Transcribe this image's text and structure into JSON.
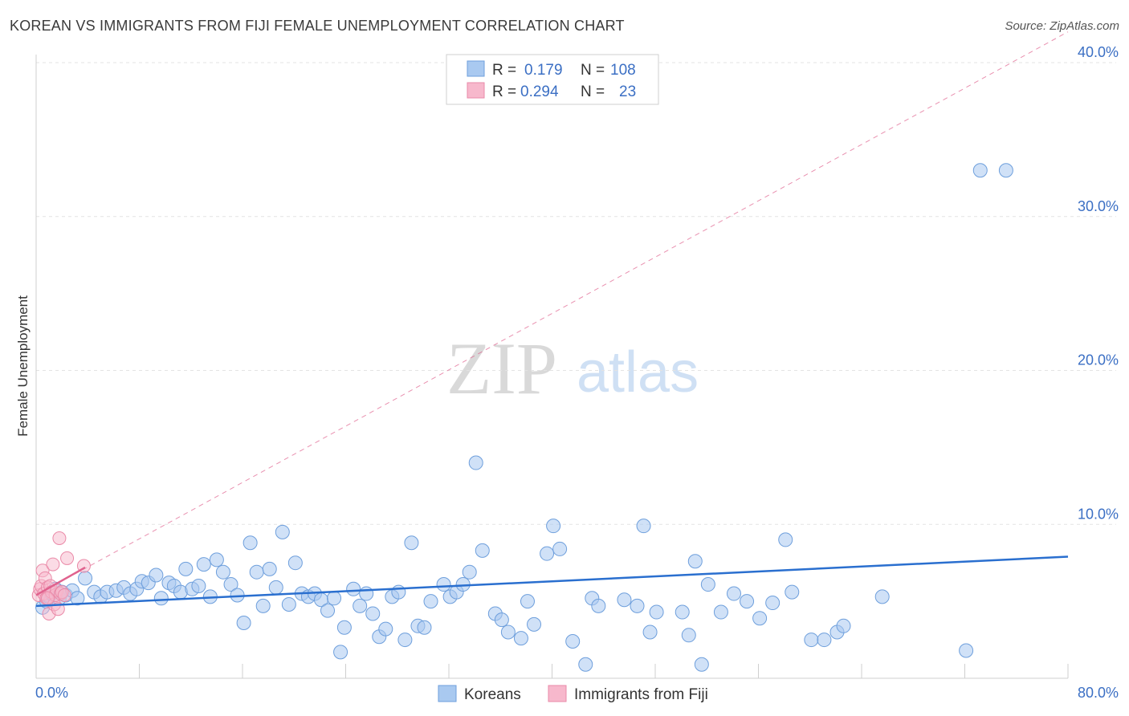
{
  "title": "KOREAN VS IMMIGRANTS FROM FIJI FEMALE UNEMPLOYMENT CORRELATION CHART",
  "source": "Source: ZipAtlas.com",
  "watermark": {
    "part1": "ZIP",
    "part2": "atlas"
  },
  "colors": {
    "koreans_fill": "#a9c9f0",
    "koreans_stroke": "#6e9fdc",
    "koreans_line": "#2a6fcf",
    "fiji_fill": "#f7b8cc",
    "fiji_stroke": "#ea8aa8",
    "fiji_line": "#e0628e",
    "grid": "#e3e3e3",
    "axis_label": "#3b6fc4"
  },
  "stats": {
    "r_label": "R =",
    "n_label": "N =",
    "koreans": {
      "r": "0.179",
      "n": "108"
    },
    "fiji": {
      "r": "0.294",
      "n": "23"
    }
  },
  "chart_data": {
    "type": "scatter",
    "title": "KOREAN VS IMMIGRANTS FROM FIJI FEMALE UNEMPLOYMENT CORRELATION CHART",
    "xlabel": "",
    "ylabel": "Female Unemployment",
    "xlim": [
      0,
      80
    ],
    "ylim": [
      0,
      40
    ],
    "x_tick_labels": [
      "0.0%",
      "80.0%"
    ],
    "y_ticks": [
      10,
      20,
      30,
      40
    ],
    "y_tick_labels": [
      "10.0%",
      "20.0%",
      "30.0%",
      "40.0%"
    ],
    "grid": true,
    "legend_position": "bottom-center",
    "series": [
      {
        "name": "Koreans",
        "trend": {
          "x": [
            0,
            80
          ],
          "y": [
            4.7,
            7.9
          ],
          "style": "solid"
        },
        "points": [
          [
            0.5,
            4.6
          ],
          [
            0.8,
            5.0
          ],
          [
            1.0,
            5.3
          ],
          [
            1.2,
            5.5
          ],
          [
            1.5,
            5.8
          ],
          [
            1.8,
            5.2
          ],
          [
            2.0,
            5.6
          ],
          [
            2.3,
            5.4
          ],
          [
            2.8,
            5.7
          ],
          [
            3.2,
            5.2
          ],
          [
            3.8,
            6.5
          ],
          [
            4.5,
            5.6
          ],
          [
            5.0,
            5.3
          ],
          [
            5.5,
            5.6
          ],
          [
            6.2,
            5.7
          ],
          [
            6.8,
            5.9
          ],
          [
            7.3,
            5.5
          ],
          [
            7.8,
            5.8
          ],
          [
            8.2,
            6.3
          ],
          [
            8.7,
            6.2
          ],
          [
            9.3,
            6.7
          ],
          [
            9.7,
            5.2
          ],
          [
            10.3,
            6.2
          ],
          [
            10.7,
            6.0
          ],
          [
            11.2,
            5.6
          ],
          [
            11.6,
            7.1
          ],
          [
            12.1,
            5.8
          ],
          [
            12.6,
            6.0
          ],
          [
            13.0,
            7.4
          ],
          [
            13.5,
            5.3
          ],
          [
            14.0,
            7.7
          ],
          [
            14.5,
            6.9
          ],
          [
            15.1,
            6.1
          ],
          [
            15.6,
            5.4
          ],
          [
            16.1,
            3.6
          ],
          [
            16.6,
            8.8
          ],
          [
            17.1,
            6.9
          ],
          [
            17.6,
            4.7
          ],
          [
            18.1,
            7.1
          ],
          [
            18.6,
            5.9
          ],
          [
            19.1,
            9.5
          ],
          [
            19.6,
            4.8
          ],
          [
            20.1,
            7.5
          ],
          [
            20.6,
            5.5
          ],
          [
            21.1,
            5.3
          ],
          [
            21.6,
            5.5
          ],
          [
            22.1,
            5.1
          ],
          [
            22.6,
            4.4
          ],
          [
            23.1,
            5.2
          ],
          [
            23.6,
            1.7
          ],
          [
            23.9,
            3.3
          ],
          [
            24.6,
            5.8
          ],
          [
            25.1,
            4.7
          ],
          [
            25.6,
            5.5
          ],
          [
            26.1,
            4.2
          ],
          [
            26.6,
            2.7
          ],
          [
            27.1,
            3.2
          ],
          [
            27.6,
            5.3
          ],
          [
            28.1,
            5.6
          ],
          [
            28.6,
            2.5
          ],
          [
            29.1,
            8.8
          ],
          [
            29.6,
            3.4
          ],
          [
            30.1,
            3.3
          ],
          [
            30.6,
            5.0
          ],
          [
            31.6,
            6.1
          ],
          [
            32.1,
            5.3
          ],
          [
            32.6,
            5.6
          ],
          [
            33.1,
            6.1
          ],
          [
            33.6,
            6.9
          ],
          [
            34.1,
            14.0
          ],
          [
            34.6,
            8.3
          ],
          [
            35.6,
            4.2
          ],
          [
            36.1,
            3.8
          ],
          [
            36.6,
            3.0
          ],
          [
            37.6,
            2.6
          ],
          [
            38.1,
            5.0
          ],
          [
            38.6,
            3.5
          ],
          [
            39.6,
            8.1
          ],
          [
            40.1,
            9.9
          ],
          [
            40.6,
            8.4
          ],
          [
            41.6,
            2.4
          ],
          [
            42.6,
            0.9
          ],
          [
            43.1,
            5.2
          ],
          [
            43.6,
            4.7
          ],
          [
            45.6,
            5.1
          ],
          [
            46.6,
            4.7
          ],
          [
            47.1,
            9.9
          ],
          [
            47.6,
            3.0
          ],
          [
            48.1,
            4.3
          ],
          [
            50.1,
            4.3
          ],
          [
            50.6,
            2.8
          ],
          [
            51.1,
            7.6
          ],
          [
            51.6,
            0.9
          ],
          [
            52.1,
            6.1
          ],
          [
            53.1,
            4.3
          ],
          [
            54.1,
            5.5
          ],
          [
            55.1,
            5.0
          ],
          [
            56.1,
            3.9
          ],
          [
            57.1,
            4.9
          ],
          [
            58.1,
            9.0
          ],
          [
            58.6,
            5.6
          ],
          [
            60.1,
            2.5
          ],
          [
            61.1,
            2.5
          ],
          [
            62.1,
            3.0
          ],
          [
            62.6,
            3.4
          ],
          [
            65.6,
            5.3
          ],
          [
            72.1,
            1.8
          ],
          [
            73.2,
            33.0
          ],
          [
            75.2,
            33.0
          ]
        ]
      },
      {
        "name": "Immigrants from Fiji",
        "trend": {
          "x": [
            0,
            3.8
          ],
          "y": [
            5.4,
            7.2
          ],
          "style": "solid"
        },
        "trend_extended": {
          "x": [
            0,
            80
          ],
          "y": [
            5.4,
            42.0
          ],
          "style": "dashed"
        },
        "points": [
          [
            0.2,
            5.4
          ],
          [
            0.3,
            5.8
          ],
          [
            0.4,
            6.0
          ],
          [
            0.5,
            7.0
          ],
          [
            0.6,
            5.5
          ],
          [
            0.7,
            6.5
          ],
          [
            0.8,
            5.2
          ],
          [
            0.9,
            5.9
          ],
          [
            1.0,
            4.2
          ],
          [
            1.1,
            6.0
          ],
          [
            1.2,
            5.6
          ],
          [
            1.3,
            7.4
          ],
          [
            1.4,
            4.8
          ],
          [
            1.5,
            5.4
          ],
          [
            1.6,
            5.7
          ],
          [
            1.7,
            4.5
          ],
          [
            1.8,
            9.1
          ],
          [
            1.9,
            5.5
          ],
          [
            2.0,
            5.6
          ],
          [
            2.2,
            5.4
          ],
          [
            2.4,
            7.8
          ],
          [
            3.7,
            7.3
          ],
          [
            0.9,
            5.2
          ]
        ]
      }
    ]
  },
  "legend": {
    "koreans": "Koreans",
    "fiji": "Immigrants from Fiji"
  }
}
